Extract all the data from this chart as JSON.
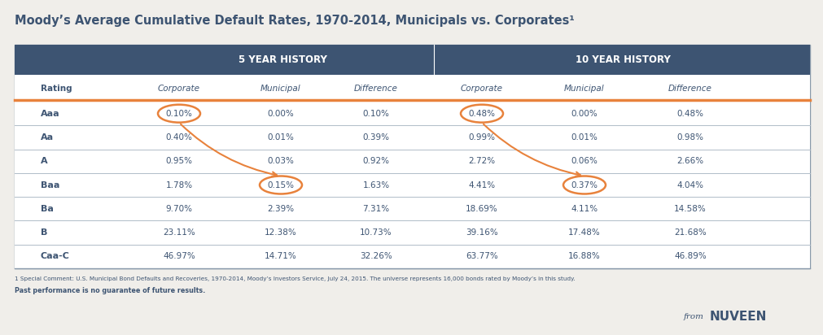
{
  "title": "Moody’s Average Cumulative Default Rates, 1970-2014, Municipals vs. Corporates¹",
  "header_bg": "#3d5472",
  "header_text": "#ffffff",
  "subheader_5yr": "5 Year History",
  "subheader_10yr": "10 Year History",
  "col_headers": [
    "Rating",
    "Corporate",
    "Municipal",
    "Difference",
    "Corporate",
    "Municipal",
    "Difference"
  ],
  "orange_line_color": "#e8823c",
  "ratings": [
    "Aaa",
    "Aa",
    "A",
    "Baa",
    "Ba",
    "B",
    "Caa-C"
  ],
  "data": [
    [
      "0.10%",
      "0.00%",
      "0.10%",
      "0.48%",
      "0.00%",
      "0.48%"
    ],
    [
      "0.40%",
      "0.01%",
      "0.39%",
      "0.99%",
      "0.01%",
      "0.98%"
    ],
    [
      "0.95%",
      "0.03%",
      "0.92%",
      "2.72%",
      "0.06%",
      "2.66%"
    ],
    [
      "1.78%",
      "0.15%",
      "1.63%",
      "4.41%",
      "0.37%",
      "4.04%"
    ],
    [
      "9.70%",
      "2.39%",
      "7.31%",
      "18.69%",
      "4.11%",
      "14.58%"
    ],
    [
      "23.11%",
      "12.38%",
      "10.73%",
      "39.16%",
      "17.48%",
      "21.68%"
    ],
    [
      "46.97%",
      "14.71%",
      "32.26%",
      "63.77%",
      "16.88%",
      "46.89%"
    ]
  ],
  "circle_cells": [
    [
      0,
      1
    ],
    [
      3,
      2
    ],
    [
      0,
      4
    ],
    [
      3,
      5
    ]
  ],
  "footnote1": "1 Special Comment: U.S. Municipal Bond Defaults and Recoveries, 1970-2014, Moody’s Investors Service, July 24, 2015. The universe represents 16,000 bonds rated by Moody’s in this study.",
  "footnote2": "Past performance is no guarantee of future results.",
  "nuveen_from": "from",
  "nuveen_brand": "NUVEEN",
  "bg_color": "#f0eeea",
  "text_color": "#3d5472"
}
